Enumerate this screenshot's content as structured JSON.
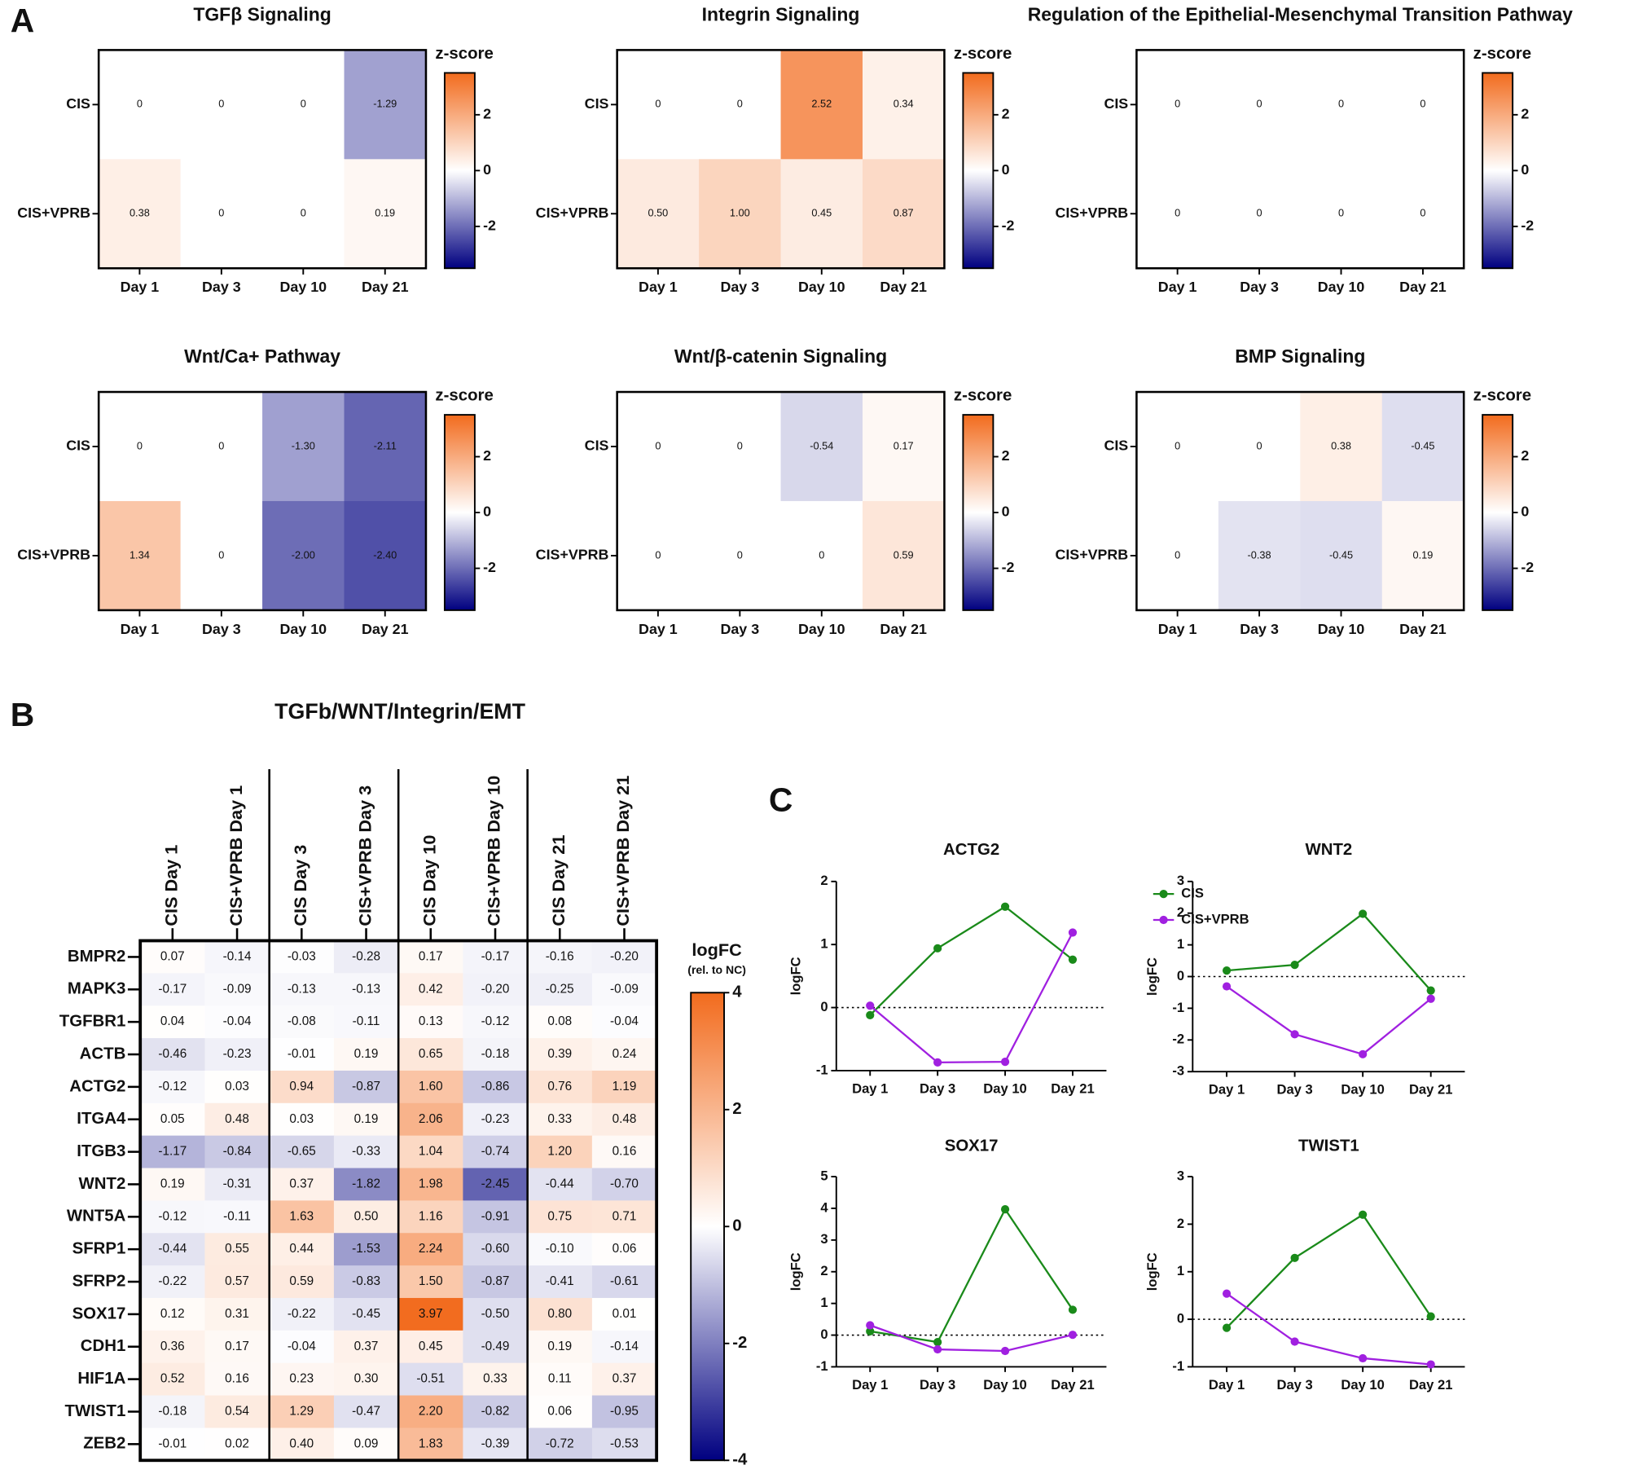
{
  "panels": [
    "A",
    "B",
    "C"
  ],
  "chart_data": [
    {
      "type": "heatmap",
      "title": "TGFβ Signaling",
      "rows": [
        "CIS",
        "CIS+VPRB"
      ],
      "columns": [
        "Day 1",
        "Day 3",
        "Day 10",
        "Day 21"
      ],
      "values": [
        [
          0,
          0,
          0,
          -1.29
        ],
        [
          0.38,
          0,
          0,
          0.19
        ]
      ],
      "value_labels": [
        [
          "0",
          "0",
          "0",
          "-1.29"
        ],
        [
          "0.38",
          "0",
          "0",
          "0.19"
        ]
      ],
      "colorbar_title": "z-score",
      "zlim": [
        -3.5,
        3.5
      ],
      "zticks": [
        -2,
        0,
        2
      ],
      "colors": {
        "low": "#000080",
        "mid": "#ffffff",
        "high": "#f26b1d"
      }
    },
    {
      "type": "heatmap",
      "title": "Integrin Signaling",
      "rows": [
        "CIS",
        "CIS+VPRB"
      ],
      "columns": [
        "Day 1",
        "Day 3",
        "Day 10",
        "Day 21"
      ],
      "values": [
        [
          0,
          0,
          2.52,
          0.34
        ],
        [
          0.5,
          1.0,
          0.45,
          0.87
        ]
      ],
      "value_labels": [
        [
          "0",
          "0",
          "2.52",
          "0.34"
        ],
        [
          "0.50",
          "1.00",
          "0.45",
          "0.87"
        ]
      ],
      "colorbar_title": "z-score",
      "zlim": [
        -3.5,
        3.5
      ],
      "zticks": [
        -2,
        0,
        2
      ],
      "colors": {
        "low": "#000080",
        "mid": "#ffffff",
        "high": "#f26b1d"
      }
    },
    {
      "type": "heatmap",
      "title": "Regulation of the Epithelial-Mesenchymal Transition Pathway",
      "rows": [
        "CIS",
        "CIS+VPRB"
      ],
      "columns": [
        "Day 1",
        "Day 3",
        "Day 10",
        "Day 21"
      ],
      "values": [
        [
          0,
          0,
          0,
          0
        ],
        [
          0,
          0,
          0,
          0
        ]
      ],
      "value_labels": [
        [
          "0",
          "0",
          "0",
          "0"
        ],
        [
          "0",
          "0",
          "0",
          "0"
        ]
      ],
      "colorbar_title": "z-score",
      "zlim": [
        -3.5,
        3.5
      ],
      "zticks": [
        -2,
        0,
        2
      ],
      "colors": {
        "low": "#000080",
        "mid": "#ffffff",
        "high": "#f26b1d"
      }
    },
    {
      "type": "heatmap",
      "title": "Wnt/Ca+ Pathway",
      "rows": [
        "CIS",
        "CIS+VPRB"
      ],
      "columns": [
        "Day 1",
        "Day 3",
        "Day 10",
        "Day 21"
      ],
      "values": [
        [
          0,
          0,
          -1.3,
          -2.11
        ],
        [
          1.34,
          0,
          -2.0,
          -2.4
        ]
      ],
      "value_labels": [
        [
          "0",
          "0",
          "-1.30",
          "-2.11"
        ],
        [
          "1.34",
          "0",
          "-2.00",
          "-2.40"
        ]
      ],
      "colorbar_title": "z-score",
      "zlim": [
        -3.5,
        3.5
      ],
      "zticks": [
        -2,
        0,
        2
      ],
      "colors": {
        "low": "#000080",
        "mid": "#ffffff",
        "high": "#f26b1d"
      }
    },
    {
      "type": "heatmap",
      "title": "Wnt/β-catenin Signaling",
      "rows": [
        "CIS",
        "CIS+VPRB"
      ],
      "columns": [
        "Day 1",
        "Day 3",
        "Day 10",
        "Day 21"
      ],
      "values": [
        [
          0,
          0,
          -0.54,
          0.17
        ],
        [
          0,
          0,
          0,
          0.59
        ]
      ],
      "value_labels": [
        [
          "0",
          "0",
          "-0.54",
          "0.17"
        ],
        [
          "0",
          "0",
          "0",
          "0.59"
        ]
      ],
      "colorbar_title": "z-score",
      "zlim": [
        -3.5,
        3.5
      ],
      "zticks": [
        -2,
        0,
        2
      ],
      "colors": {
        "low": "#000080",
        "mid": "#ffffff",
        "high": "#f26b1d"
      }
    },
    {
      "type": "heatmap",
      "title": "BMP Signaling",
      "rows": [
        "CIS",
        "CIS+VPRB"
      ],
      "columns": [
        "Day 1",
        "Day 3",
        "Day 10",
        "Day 21"
      ],
      "values": [
        [
          0,
          0,
          0.38,
          -0.45
        ],
        [
          0,
          -0.38,
          -0.45,
          0.19
        ]
      ],
      "value_labels": [
        [
          "0",
          "0",
          "0.38",
          "-0.45"
        ],
        [
          "0",
          "-0.38",
          "-0.45",
          "0.19"
        ]
      ],
      "colorbar_title": "z-score",
      "zlim": [
        -3.5,
        3.5
      ],
      "zticks": [
        -2,
        0,
        2
      ],
      "colors": {
        "low": "#000080",
        "mid": "#ffffff",
        "high": "#f26b1d"
      }
    },
    {
      "type": "heatmap",
      "title": "TGFb/WNT/Integrin/EMT",
      "rows": [
        "BMPR2",
        "MAPK3",
        "TGFBR1",
        "ACTB",
        "ACTG2",
        "ITGA4",
        "ITGB3",
        "WNT2",
        "WNT5A",
        "SFRP1",
        "SFRP2",
        "SOX17",
        "CDH1",
        "HIF1A",
        "TWIST1",
        "ZEB2"
      ],
      "columns": [
        "CIS Day 1",
        "CIS+VPRB Day 1",
        "CIS Day 3",
        "CIS+VPRB Day 3",
        "CIS Day 10",
        "CIS+VPRB Day 10",
        "CIS Day 21",
        "CIS+VPRB Day 21"
      ],
      "values": [
        [
          0.07,
          -0.14,
          -0.03,
          -0.28,
          0.17,
          -0.17,
          -0.16,
          -0.2
        ],
        [
          -0.17,
          -0.09,
          -0.13,
          -0.13,
          0.42,
          -0.2,
          -0.25,
          -0.09
        ],
        [
          0.04,
          -0.04,
          -0.08,
          -0.11,
          0.13,
          -0.12,
          0.08,
          -0.04
        ],
        [
          -0.46,
          -0.23,
          -0.01,
          0.19,
          0.65,
          -0.18,
          0.39,
          0.24
        ],
        [
          -0.12,
          0.03,
          0.94,
          -0.87,
          1.6,
          -0.86,
          0.76,
          1.19
        ],
        [
          0.05,
          0.48,
          0.03,
          0.19,
          2.06,
          -0.23,
          0.33,
          0.48
        ],
        [
          -1.17,
          -0.84,
          -0.65,
          -0.33,
          1.04,
          -0.74,
          1.2,
          0.16
        ],
        [
          0.19,
          -0.31,
          0.37,
          -1.82,
          1.98,
          -2.45,
          -0.44,
          -0.7
        ],
        [
          -0.12,
          -0.11,
          1.63,
          0.5,
          1.16,
          -0.91,
          0.75,
          0.71
        ],
        [
          -0.44,
          0.55,
          0.44,
          -1.53,
          2.24,
          -0.6,
          -0.1,
          0.06
        ],
        [
          -0.22,
          0.57,
          0.59,
          -0.83,
          1.5,
          -0.87,
          -0.41,
          -0.61
        ],
        [
          0.12,
          0.31,
          -0.22,
          -0.45,
          3.97,
          -0.5,
          0.8,
          0.01
        ],
        [
          0.36,
          0.17,
          -0.04,
          0.37,
          0.45,
          -0.49,
          0.19,
          -0.14
        ],
        [
          0.52,
          0.16,
          0.23,
          0.3,
          -0.51,
          0.33,
          0.11,
          0.37
        ],
        [
          -0.18,
          0.54,
          1.29,
          -0.47,
          2.2,
          -0.82,
          0.06,
          -0.95
        ],
        [
          -0.01,
          0.02,
          0.4,
          0.09,
          1.83,
          -0.39,
          -0.72,
          -0.53
        ]
      ],
      "value_labels": [
        [
          "0.07",
          "-0.14",
          "-0.03",
          "-0.28",
          "0.17",
          "-0.17",
          "-0.16",
          "-0.20"
        ],
        [
          "-0.17",
          "-0.09",
          "-0.13",
          "-0.13",
          "0.42",
          "-0.20",
          "-0.25",
          "-0.09"
        ],
        [
          "0.04",
          "-0.04",
          "-0.08",
          "-0.11",
          "0.13",
          "-0.12",
          "0.08",
          "-0.04"
        ],
        [
          "-0.46",
          "-0.23",
          "-0.01",
          "0.19",
          "0.65",
          "-0.18",
          "0.39",
          "0.24"
        ],
        [
          "-0.12",
          "0.03",
          "0.94",
          "-0.87",
          "1.60",
          "-0.86",
          "0.76",
          "1.19"
        ],
        [
          "0.05",
          "0.48",
          "0.03",
          "0.19",
          "2.06",
          "-0.23",
          "0.33",
          "0.48"
        ],
        [
          "-1.17",
          "-0.84",
          "-0.65",
          "-0.33",
          "1.04",
          "-0.74",
          "1.20",
          "0.16"
        ],
        [
          "0.19",
          "-0.31",
          "0.37",
          "-1.82",
          "1.98",
          "-2.45",
          "-0.44",
          "-0.70"
        ],
        [
          "-0.12",
          "-0.11",
          "1.63",
          "0.50",
          "1.16",
          "-0.91",
          "0.75",
          "0.71"
        ],
        [
          "-0.44",
          "0.55",
          "0.44",
          "-1.53",
          "2.24",
          "-0.60",
          "-0.10",
          "0.06"
        ],
        [
          "-0.22",
          "0.57",
          "0.59",
          "-0.83",
          "1.50",
          "-0.87",
          "-0.41",
          "-0.61"
        ],
        [
          "0.12",
          "0.31",
          "-0.22",
          "-0.45",
          "3.97",
          "-0.50",
          "0.80",
          "0.01"
        ],
        [
          "0.36",
          "0.17",
          "-0.04",
          "0.37",
          "0.45",
          "-0.49",
          "0.19",
          "-0.14"
        ],
        [
          "0.52",
          "0.16",
          "0.23",
          "0.30",
          "-0.51",
          "0.33",
          "0.11",
          "0.37"
        ],
        [
          "-0.18",
          "0.54",
          "1.29",
          "-0.47",
          "2.20",
          "-0.82",
          "0.06",
          "-0.95"
        ],
        [
          "-0.01",
          "0.02",
          "0.40",
          "0.09",
          "1.83",
          "-0.39",
          "-0.72",
          "-0.53"
        ]
      ],
      "colorbar_title": "logFC",
      "colorbar_subtitle": "(rel. to NC)",
      "zlim": [
        -4,
        4
      ],
      "zticks": [
        -4,
        -2,
        0,
        2,
        4
      ],
      "colors": {
        "low": "#000080",
        "mid": "#ffffff",
        "high": "#f26b1d"
      }
    },
    {
      "type": "line",
      "title": "ACTG2",
      "categories": [
        "Day 1",
        "Day 3",
        "Day 10",
        "Day 21"
      ],
      "ylabel": "logFC",
      "ylim": [
        -1,
        2
      ],
      "yticks": [
        -1,
        0,
        1,
        2
      ],
      "zero_line": true,
      "legend": "right",
      "series": [
        {
          "name": "CIS",
          "color": "#1a8a1a",
          "values": [
            -0.12,
            0.94,
            1.6,
            0.76
          ]
        },
        {
          "name": "CIS+VPRB",
          "color": "#a020e0",
          "values": [
            0.03,
            -0.87,
            -0.86,
            1.19
          ]
        }
      ]
    },
    {
      "type": "line",
      "title": "WNT2",
      "categories": [
        "Day 1",
        "Day 3",
        "Day 10",
        "Day 21"
      ],
      "ylabel": "logFC",
      "ylim": [
        -3,
        3
      ],
      "yticks": [
        -3,
        -2,
        -1,
        0,
        1,
        2,
        3
      ],
      "zero_line": true,
      "series": [
        {
          "name": "CIS",
          "color": "#1a8a1a",
          "values": [
            0.19,
            0.37,
            1.98,
            -0.44
          ]
        },
        {
          "name": "CIS+VPRB",
          "color": "#a020e0",
          "values": [
            -0.31,
            -1.82,
            -2.45,
            -0.7
          ]
        }
      ]
    },
    {
      "type": "line",
      "title": "SOX17",
      "categories": [
        "Day 1",
        "Day 3",
        "Day 10",
        "Day 21"
      ],
      "ylabel": "logFC",
      "ylim": [
        -1,
        5
      ],
      "yticks": [
        -1,
        0,
        1,
        2,
        3,
        4,
        5
      ],
      "zero_line": true,
      "series": [
        {
          "name": "CIS",
          "color": "#1a8a1a",
          "values": [
            0.12,
            -0.22,
            3.97,
            0.8
          ]
        },
        {
          "name": "CIS+VPRB",
          "color": "#a020e0",
          "values": [
            0.31,
            -0.45,
            -0.5,
            0.01
          ]
        }
      ]
    },
    {
      "type": "line",
      "title": "TWIST1",
      "categories": [
        "Day 1",
        "Day 3",
        "Day 10",
        "Day 21"
      ],
      "ylabel": "logFC",
      "ylim": [
        -1,
        3
      ],
      "yticks": [
        -1,
        0,
        1,
        2,
        3
      ],
      "zero_line": true,
      "series": [
        {
          "name": "CIS",
          "color": "#1a8a1a",
          "values": [
            -0.18,
            1.29,
            2.2,
            0.06
          ]
        },
        {
          "name": "CIS+VPRB",
          "color": "#a020e0",
          "values": [
            0.54,
            -0.47,
            -0.82,
            -0.95
          ]
        }
      ]
    }
  ]
}
